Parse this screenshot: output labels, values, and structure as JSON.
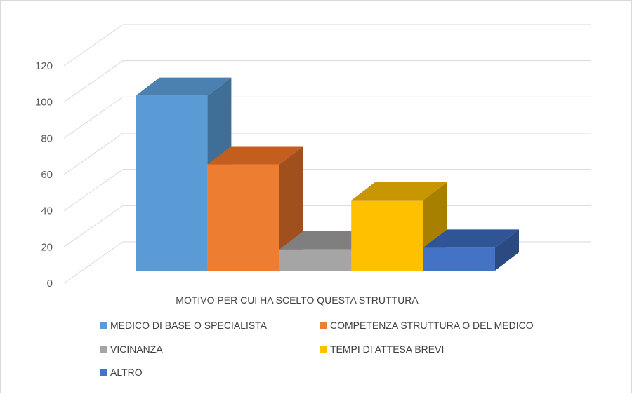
{
  "chart_data": {
    "type": "bar",
    "style": "3d-clustered-column",
    "categories": [
      "MOTIVO PER CUI HA SCELTO QUESTA STRUTTURA"
    ],
    "series": [
      {
        "name": "MEDICO DI BASE O SPECIALISTA",
        "values": [
          107
        ],
        "color": "#5b9bd5",
        "side": "#3f6e96",
        "top": "#4a81b0"
      },
      {
        "name": "COMPETENZA STRUTTURA O DEL MEDICO",
        "values": [
          65
        ],
        "color": "#ed7d31",
        "side": "#a14f1d",
        "top": "#c45e1f"
      },
      {
        "name": "VICINANZA",
        "values": [
          13
        ],
        "color": "#a5a5a5",
        "side": "#6f6f6f",
        "top": "#7f7f7f"
      },
      {
        "name": "TEMPI DI ATTESA BREVI",
        "values": [
          43
        ],
        "color": "#ffc000",
        "side": "#a97f00",
        "top": "#c89600"
      },
      {
        "name": "ALTRO",
        "values": [
          14
        ],
        "color": "#4472c4",
        "side": "#2b4a82",
        "top": "#2f5597"
      }
    ],
    "xlabel": "MOTIVO PER CUI HA SCELTO QUESTA STRUTTURA",
    "ylabel": "",
    "yticks": [
      0,
      20,
      40,
      60,
      80,
      100,
      120
    ],
    "ylim": [
      0,
      120
    ],
    "grid": true,
    "legend_position": "bottom"
  }
}
